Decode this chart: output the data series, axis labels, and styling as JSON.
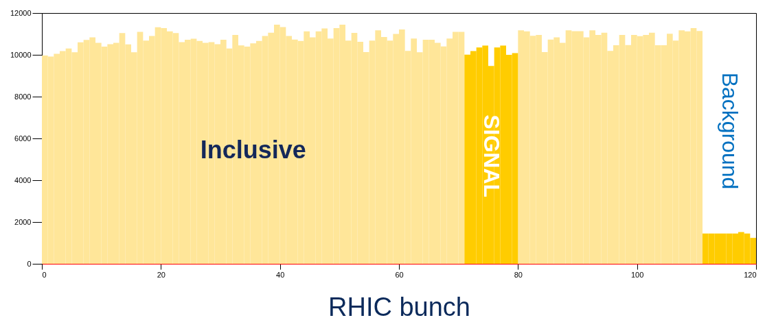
{
  "chart_data": {
    "type": "histogram",
    "xlabel": "RHIC bunch",
    "bins": [
      0,
      1,
      2,
      3,
      4,
      5,
      6,
      7,
      8,
      9,
      10,
      11,
      12,
      13,
      14,
      15,
      16,
      17,
      18,
      19,
      20,
      21,
      22,
      23,
      24,
      25,
      26,
      27,
      28,
      29,
      30,
      31,
      32,
      33,
      34,
      35,
      36,
      37,
      38,
      39,
      40,
      41,
      42,
      43,
      44,
      45,
      46,
      47,
      48,
      49,
      50,
      51,
      52,
      53,
      54,
      55,
      56,
      57,
      58,
      59,
      60,
      61,
      62,
      63,
      64,
      65,
      66,
      67,
      68,
      69,
      70,
      71,
      72,
      73,
      74,
      75,
      76,
      77,
      78,
      79,
      80,
      81,
      82,
      83,
      84,
      85,
      86,
      87,
      88,
      89,
      90,
      91,
      92,
      93,
      94,
      95,
      96,
      97,
      98,
      99,
      100,
      101,
      102,
      103,
      104,
      105,
      106,
      107,
      108,
      109,
      110,
      111,
      112,
      113,
      114,
      115,
      116,
      117,
      118,
      119,
      120
    ],
    "series": [
      {
        "name": "Inclusive",
        "color": "#ffe699",
        "values": [
          9970,
          9920,
          10050,
          10180,
          10300,
          10120,
          10600,
          10710,
          10840,
          10570,
          10390,
          10510,
          10570,
          11040,
          10500,
          10120,
          11100,
          10680,
          10900,
          11320,
          11280,
          11120,
          11040,
          10610,
          10720,
          10770,
          10660,
          10570,
          10610,
          10510,
          10720,
          10300,
          10950,
          10450,
          10390,
          10550,
          10660,
          10900,
          11060,
          11440,
          11330,
          10900,
          10730,
          10660,
          11120,
          10840,
          11120,
          11260,
          10780,
          11280,
          11440,
          10680,
          11050,
          10620,
          10130,
          10680,
          11170,
          10850,
          10680,
          11000,
          11210,
          10190,
          10780,
          10120,
          10720,
          10720,
          10570,
          10400,
          10780,
          11100,
          11100,
          null,
          null,
          null,
          null,
          null,
          null,
          null,
          null,
          null,
          11170,
          11120,
          10910,
          10950,
          10130,
          10730,
          10840,
          10570,
          11170,
          11130,
          11130,
          10840,
          11170,
          10950,
          11060,
          10190,
          10460,
          10950,
          10470,
          10950,
          10890,
          10950,
          11060,
          10460,
          10460,
          11010,
          10680,
          11170,
          11120,
          11280,
          11140,
          null,
          null,
          null,
          null,
          null,
          null,
          null,
          null,
          null
        ]
      },
      {
        "name": "SIGNAL",
        "color": "#ffcc00",
        "values": [
          null,
          null,
          null,
          null,
          null,
          null,
          null,
          null,
          null,
          null,
          null,
          null,
          null,
          null,
          null,
          null,
          null,
          null,
          null,
          null,
          null,
          null,
          null,
          null,
          null,
          null,
          null,
          null,
          null,
          null,
          null,
          null,
          null,
          null,
          null,
          null,
          null,
          null,
          null,
          null,
          null,
          null,
          null,
          null,
          null,
          null,
          null,
          null,
          null,
          null,
          null,
          null,
          null,
          null,
          null,
          null,
          null,
          null,
          null,
          null,
          null,
          null,
          null,
          null,
          null,
          null,
          null,
          null,
          null,
          null,
          null,
          10010,
          10180,
          10350,
          10440,
          9470,
          10350,
          10440,
          10000,
          10080,
          null,
          null,
          null,
          null,
          null,
          null,
          null,
          null,
          null,
          null,
          null,
          null,
          null,
          null,
          null,
          null,
          null,
          null,
          null,
          null,
          null,
          null,
          null,
          null,
          null,
          null,
          null,
          null,
          null,
          null,
          null,
          null,
          null,
          null,
          null,
          null,
          null,
          null,
          null,
          null
        ]
      },
      {
        "name": "Background",
        "color": "#ffcc00",
        "values": [
          null,
          null,
          null,
          null,
          null,
          null,
          null,
          null,
          null,
          null,
          null,
          null,
          null,
          null,
          null,
          null,
          null,
          null,
          null,
          null,
          null,
          null,
          null,
          null,
          null,
          null,
          null,
          null,
          null,
          null,
          null,
          null,
          null,
          null,
          null,
          null,
          null,
          null,
          null,
          null,
          null,
          null,
          null,
          null,
          null,
          null,
          null,
          null,
          null,
          null,
          null,
          null,
          null,
          null,
          null,
          null,
          null,
          null,
          null,
          null,
          null,
          null,
          null,
          null,
          null,
          null,
          null,
          null,
          null,
          null,
          null,
          null,
          null,
          null,
          null,
          null,
          null,
          null,
          null,
          null,
          null,
          null,
          null,
          null,
          null,
          null,
          null,
          null,
          null,
          null,
          null,
          null,
          null,
          null,
          null,
          null,
          null,
          null,
          null,
          null,
          null,
          null,
          null,
          null,
          null,
          null,
          null,
          null,
          null,
          null,
          null,
          1450,
          1450,
          1450,
          1450,
          1450,
          1450,
          1520,
          1450,
          1240
        ]
      }
    ],
    "xlim": [
      0,
      120
    ],
    "xticks": [
      0,
      20,
      40,
      60,
      80,
      100,
      120
    ],
    "ylim": [
      0,
      12000
    ],
    "yticks": [
      0,
      2000,
      4000,
      6000,
      8000,
      10000,
      12000
    ]
  }
}
